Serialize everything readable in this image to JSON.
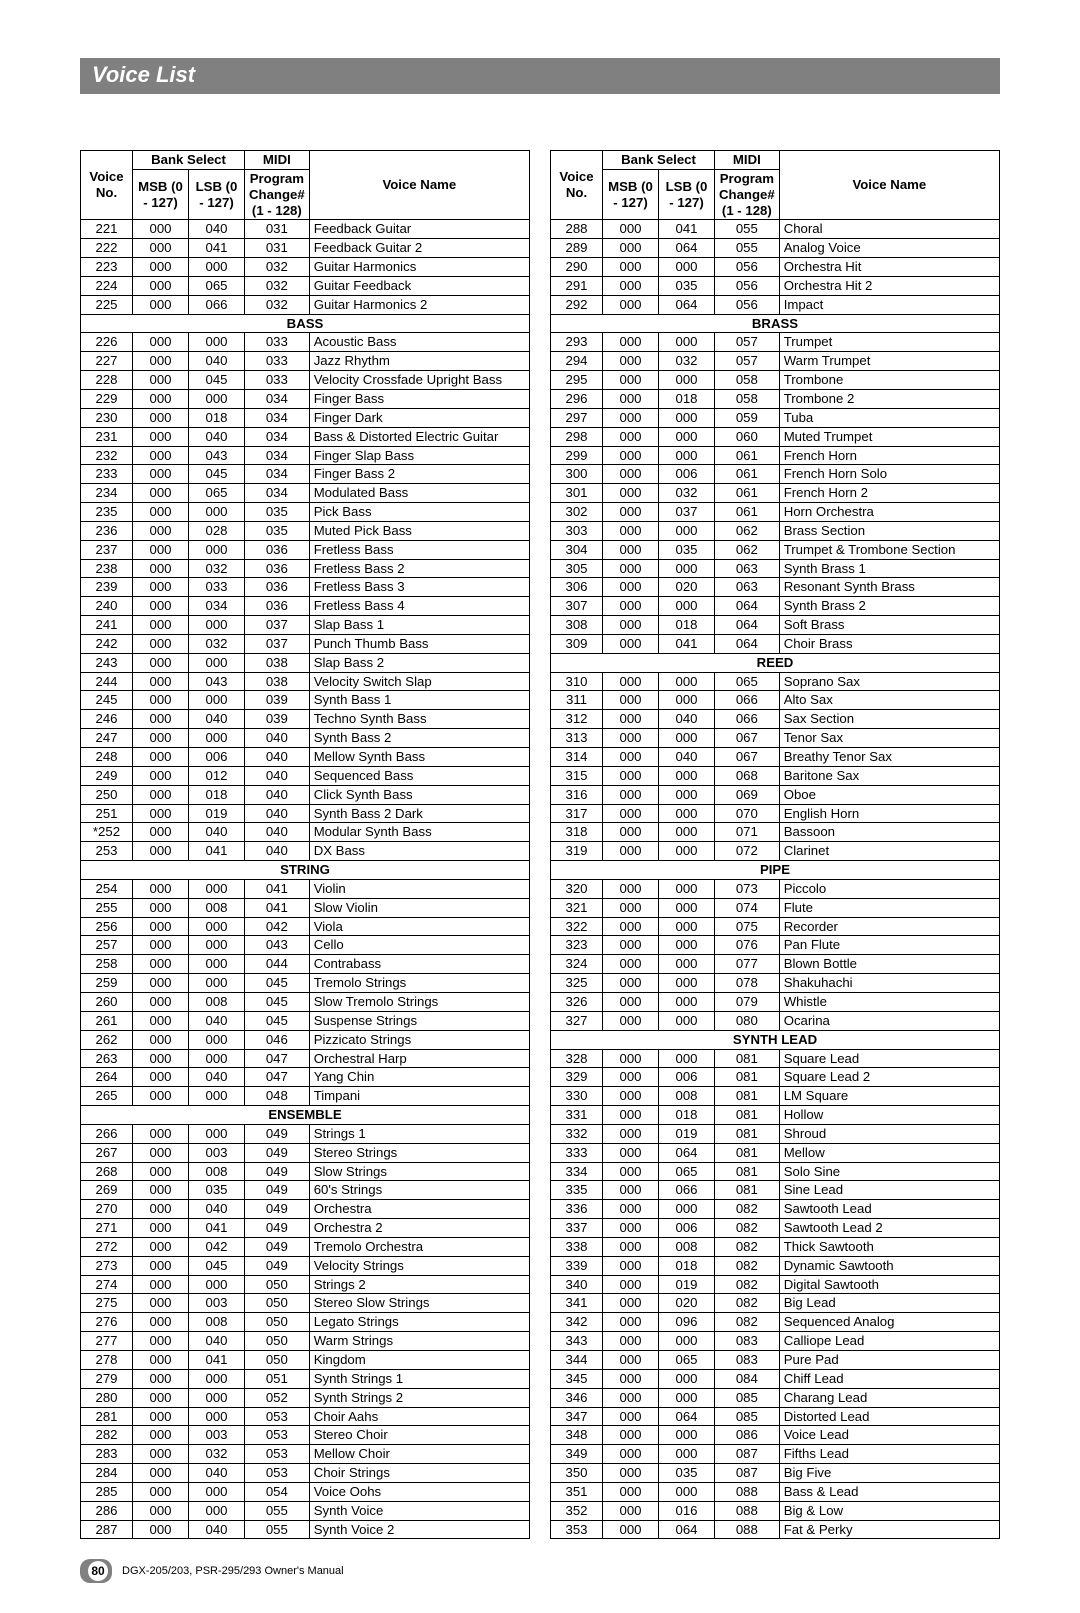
{
  "page": {
    "title": "Voice List",
    "footer_text": "DGX-205/203, PSR-295/293  Owner's Manual",
    "page_number": "80"
  },
  "headers": {
    "voice_no": "Voice No.",
    "bank_select": "Bank Select",
    "msb": "MSB (0 - 127)",
    "lsb": "LSB (0 - 127)",
    "midi": "MIDI",
    "program_change": "Program Change# (1 - 128)",
    "voice_name": "Voice Name"
  },
  "left_rows": [
    [
      "221",
      "000",
      "040",
      "031",
      "Feedback Guitar"
    ],
    [
      "222",
      "000",
      "041",
      "031",
      "Feedback Guitar 2"
    ],
    [
      "223",
      "000",
      "000",
      "032",
      "Guitar Harmonics"
    ],
    [
      "224",
      "000",
      "065",
      "032",
      "Guitar Feedback"
    ],
    [
      "225",
      "000",
      "066",
      "032",
      "Guitar Harmonics 2"
    ],
    {
      "section": "BASS"
    },
    [
      "226",
      "000",
      "000",
      "033",
      "Acoustic Bass"
    ],
    [
      "227",
      "000",
      "040",
      "033",
      "Jazz Rhythm"
    ],
    [
      "228",
      "000",
      "045",
      "033",
      "Velocity Crossfade Upright Bass"
    ],
    [
      "229",
      "000",
      "000",
      "034",
      "Finger Bass"
    ],
    [
      "230",
      "000",
      "018",
      "034",
      "Finger Dark"
    ],
    [
      "231",
      "000",
      "040",
      "034",
      "Bass & Distorted Electric Guitar"
    ],
    [
      "232",
      "000",
      "043",
      "034",
      "Finger Slap Bass"
    ],
    [
      "233",
      "000",
      "045",
      "034",
      "Finger Bass 2"
    ],
    [
      "234",
      "000",
      "065",
      "034",
      "Modulated Bass"
    ],
    [
      "235",
      "000",
      "000",
      "035",
      "Pick Bass"
    ],
    [
      "236",
      "000",
      "028",
      "035",
      "Muted Pick Bass"
    ],
    [
      "237",
      "000",
      "000",
      "036",
      "Fretless Bass"
    ],
    [
      "238",
      "000",
      "032",
      "036",
      "Fretless Bass 2"
    ],
    [
      "239",
      "000",
      "033",
      "036",
      "Fretless Bass 3"
    ],
    [
      "240",
      "000",
      "034",
      "036",
      "Fretless Bass 4"
    ],
    [
      "241",
      "000",
      "000",
      "037",
      "Slap Bass 1"
    ],
    [
      "242",
      "000",
      "032",
      "037",
      "Punch Thumb Bass"
    ],
    [
      "243",
      "000",
      "000",
      "038",
      "Slap Bass 2"
    ],
    [
      "244",
      "000",
      "043",
      "038",
      "Velocity Switch Slap"
    ],
    [
      "245",
      "000",
      "000",
      "039",
      "Synth Bass 1"
    ],
    [
      "246",
      "000",
      "040",
      "039",
      "Techno Synth Bass"
    ],
    [
      "247",
      "000",
      "000",
      "040",
      "Synth Bass 2"
    ],
    [
      "248",
      "000",
      "006",
      "040",
      "Mellow Synth Bass"
    ],
    [
      "249",
      "000",
      "012",
      "040",
      "Sequenced Bass"
    ],
    [
      "250",
      "000",
      "018",
      "040",
      "Click Synth Bass"
    ],
    [
      "251",
      "000",
      "019",
      "040",
      "Synth Bass 2 Dark"
    ],
    [
      "*252",
      "000",
      "040",
      "040",
      "Modular Synth Bass"
    ],
    [
      "253",
      "000",
      "041",
      "040",
      "DX Bass"
    ],
    {
      "section": "STRING"
    },
    [
      "254",
      "000",
      "000",
      "041",
      "Violin"
    ],
    [
      "255",
      "000",
      "008",
      "041",
      "Slow Violin"
    ],
    [
      "256",
      "000",
      "000",
      "042",
      "Viola"
    ],
    [
      "257",
      "000",
      "000",
      "043",
      "Cello"
    ],
    [
      "258",
      "000",
      "000",
      "044",
      "Contrabass"
    ],
    [
      "259",
      "000",
      "000",
      "045",
      "Tremolo Strings"
    ],
    [
      "260",
      "000",
      "008",
      "045",
      "Slow Tremolo Strings"
    ],
    [
      "261",
      "000",
      "040",
      "045",
      "Suspense Strings"
    ],
    [
      "262",
      "000",
      "000",
      "046",
      "Pizzicato Strings"
    ],
    [
      "263",
      "000",
      "000",
      "047",
      "Orchestral Harp"
    ],
    [
      "264",
      "000",
      "040",
      "047",
      "Yang Chin"
    ],
    [
      "265",
      "000",
      "000",
      "048",
      "Timpani"
    ],
    {
      "section": "ENSEMBLE"
    },
    [
      "266",
      "000",
      "000",
      "049",
      "Strings 1"
    ],
    [
      "267",
      "000",
      "003",
      "049",
      "Stereo Strings"
    ],
    [
      "268",
      "000",
      "008",
      "049",
      "Slow Strings"
    ],
    [
      "269",
      "000",
      "035",
      "049",
      "60's Strings"
    ],
    [
      "270",
      "000",
      "040",
      "049",
      "Orchestra"
    ],
    [
      "271",
      "000",
      "041",
      "049",
      "Orchestra 2"
    ],
    [
      "272",
      "000",
      "042",
      "049",
      "Tremolo Orchestra"
    ],
    [
      "273",
      "000",
      "045",
      "049",
      "Velocity Strings"
    ],
    [
      "274",
      "000",
      "000",
      "050",
      "Strings 2"
    ],
    [
      "275",
      "000",
      "003",
      "050",
      "Stereo Slow Strings"
    ],
    [
      "276",
      "000",
      "008",
      "050",
      "Legato Strings"
    ],
    [
      "277",
      "000",
      "040",
      "050",
      "Warm Strings"
    ],
    [
      "278",
      "000",
      "041",
      "050",
      "Kingdom"
    ],
    [
      "279",
      "000",
      "000",
      "051",
      "Synth Strings 1"
    ],
    [
      "280",
      "000",
      "000",
      "052",
      "Synth Strings 2"
    ],
    [
      "281",
      "000",
      "000",
      "053",
      "Choir Aahs"
    ],
    [
      "282",
      "000",
      "003",
      "053",
      "Stereo Choir"
    ],
    [
      "283",
      "000",
      "032",
      "053",
      "Mellow Choir"
    ],
    [
      "284",
      "000",
      "040",
      "053",
      "Choir Strings"
    ],
    [
      "285",
      "000",
      "000",
      "054",
      "Voice Oohs"
    ],
    [
      "286",
      "000",
      "000",
      "055",
      "Synth Voice"
    ],
    [
      "287",
      "000",
      "040",
      "055",
      "Synth Voice 2"
    ]
  ],
  "right_rows": [
    [
      "288",
      "000",
      "041",
      "055",
      "Choral"
    ],
    [
      "289",
      "000",
      "064",
      "055",
      "Analog Voice"
    ],
    [
      "290",
      "000",
      "000",
      "056",
      "Orchestra Hit"
    ],
    [
      "291",
      "000",
      "035",
      "056",
      "Orchestra Hit 2"
    ],
    [
      "292",
      "000",
      "064",
      "056",
      "Impact"
    ],
    {
      "section": "BRASS"
    },
    [
      "293",
      "000",
      "000",
      "057",
      "Trumpet"
    ],
    [
      "294",
      "000",
      "032",
      "057",
      "Warm Trumpet"
    ],
    [
      "295",
      "000",
      "000",
      "058",
      "Trombone"
    ],
    [
      "296",
      "000",
      "018",
      "058",
      "Trombone 2"
    ],
    [
      "297",
      "000",
      "000",
      "059",
      "Tuba"
    ],
    [
      "298",
      "000",
      "000",
      "060",
      "Muted Trumpet"
    ],
    [
      "299",
      "000",
      "000",
      "061",
      "French Horn"
    ],
    [
      "300",
      "000",
      "006",
      "061",
      "French Horn Solo"
    ],
    [
      "301",
      "000",
      "032",
      "061",
      "French Horn 2"
    ],
    [
      "302",
      "000",
      "037",
      "061",
      "Horn Orchestra"
    ],
    [
      "303",
      "000",
      "000",
      "062",
      "Brass Section"
    ],
    [
      "304",
      "000",
      "035",
      "062",
      "Trumpet & Trombone Section"
    ],
    [
      "305",
      "000",
      "000",
      "063",
      "Synth Brass 1"
    ],
    [
      "306",
      "000",
      "020",
      "063",
      "Resonant Synth Brass"
    ],
    [
      "307",
      "000",
      "000",
      "064",
      "Synth Brass 2"
    ],
    [
      "308",
      "000",
      "018",
      "064",
      "Soft Brass"
    ],
    [
      "309",
      "000",
      "041",
      "064",
      "Choir Brass"
    ],
    {
      "section": "REED"
    },
    [
      "310",
      "000",
      "000",
      "065",
      "Soprano Sax"
    ],
    [
      "311",
      "000",
      "000",
      "066",
      "Alto Sax"
    ],
    [
      "312",
      "000",
      "040",
      "066",
      "Sax Section"
    ],
    [
      "313",
      "000",
      "000",
      "067",
      "Tenor Sax"
    ],
    [
      "314",
      "000",
      "040",
      "067",
      "Breathy Tenor Sax"
    ],
    [
      "315",
      "000",
      "000",
      "068",
      "Baritone Sax"
    ],
    [
      "316",
      "000",
      "000",
      "069",
      "Oboe"
    ],
    [
      "317",
      "000",
      "000",
      "070",
      "English Horn"
    ],
    [
      "318",
      "000",
      "000",
      "071",
      "Bassoon"
    ],
    [
      "319",
      "000",
      "000",
      "072",
      "Clarinet"
    ],
    {
      "section": "PIPE"
    },
    [
      "320",
      "000",
      "000",
      "073",
      "Piccolo"
    ],
    [
      "321",
      "000",
      "000",
      "074",
      "Flute"
    ],
    [
      "322",
      "000",
      "000",
      "075",
      "Recorder"
    ],
    [
      "323",
      "000",
      "000",
      "076",
      "Pan Flute"
    ],
    [
      "324",
      "000",
      "000",
      "077",
      "Blown Bottle"
    ],
    [
      "325",
      "000",
      "000",
      "078",
      "Shakuhachi"
    ],
    [
      "326",
      "000",
      "000",
      "079",
      "Whistle"
    ],
    [
      "327",
      "000",
      "000",
      "080",
      "Ocarina"
    ],
    {
      "section": "SYNTH LEAD"
    },
    [
      "328",
      "000",
      "000",
      "081",
      "Square Lead"
    ],
    [
      "329",
      "000",
      "006",
      "081",
      "Square Lead 2"
    ],
    [
      "330",
      "000",
      "008",
      "081",
      "LM Square"
    ],
    [
      "331",
      "000",
      "018",
      "081",
      "Hollow"
    ],
    [
      "332",
      "000",
      "019",
      "081",
      "Shroud"
    ],
    [
      "333",
      "000",
      "064",
      "081",
      "Mellow"
    ],
    [
      "334",
      "000",
      "065",
      "081",
      "Solo Sine"
    ],
    [
      "335",
      "000",
      "066",
      "081",
      "Sine Lead"
    ],
    [
      "336",
      "000",
      "000",
      "082",
      "Sawtooth Lead"
    ],
    [
      "337",
      "000",
      "006",
      "082",
      "Sawtooth Lead 2"
    ],
    [
      "338",
      "000",
      "008",
      "082",
      "Thick Sawtooth"
    ],
    [
      "339",
      "000",
      "018",
      "082",
      "Dynamic Sawtooth"
    ],
    [
      "340",
      "000",
      "019",
      "082",
      "Digital Sawtooth"
    ],
    [
      "341",
      "000",
      "020",
      "082",
      "Big Lead"
    ],
    [
      "342",
      "000",
      "096",
      "082",
      "Sequenced Analog"
    ],
    [
      "343",
      "000",
      "000",
      "083",
      "Calliope Lead"
    ],
    [
      "344",
      "000",
      "065",
      "083",
      "Pure Pad"
    ],
    [
      "345",
      "000",
      "000",
      "084",
      "Chiff Lead"
    ],
    [
      "346",
      "000",
      "000",
      "085",
      "Charang Lead"
    ],
    [
      "347",
      "000",
      "064",
      "085",
      "Distorted Lead"
    ],
    [
      "348",
      "000",
      "000",
      "086",
      "Voice Lead"
    ],
    [
      "349",
      "000",
      "000",
      "087",
      "Fifths Lead"
    ],
    [
      "350",
      "000",
      "035",
      "087",
      "Big Five"
    ],
    [
      "351",
      "000",
      "000",
      "088",
      "Bass & Lead"
    ],
    [
      "352",
      "000",
      "016",
      "088",
      "Big & Low"
    ],
    [
      "353",
      "000",
      "064",
      "088",
      "Fat & Perky"
    ]
  ]
}
